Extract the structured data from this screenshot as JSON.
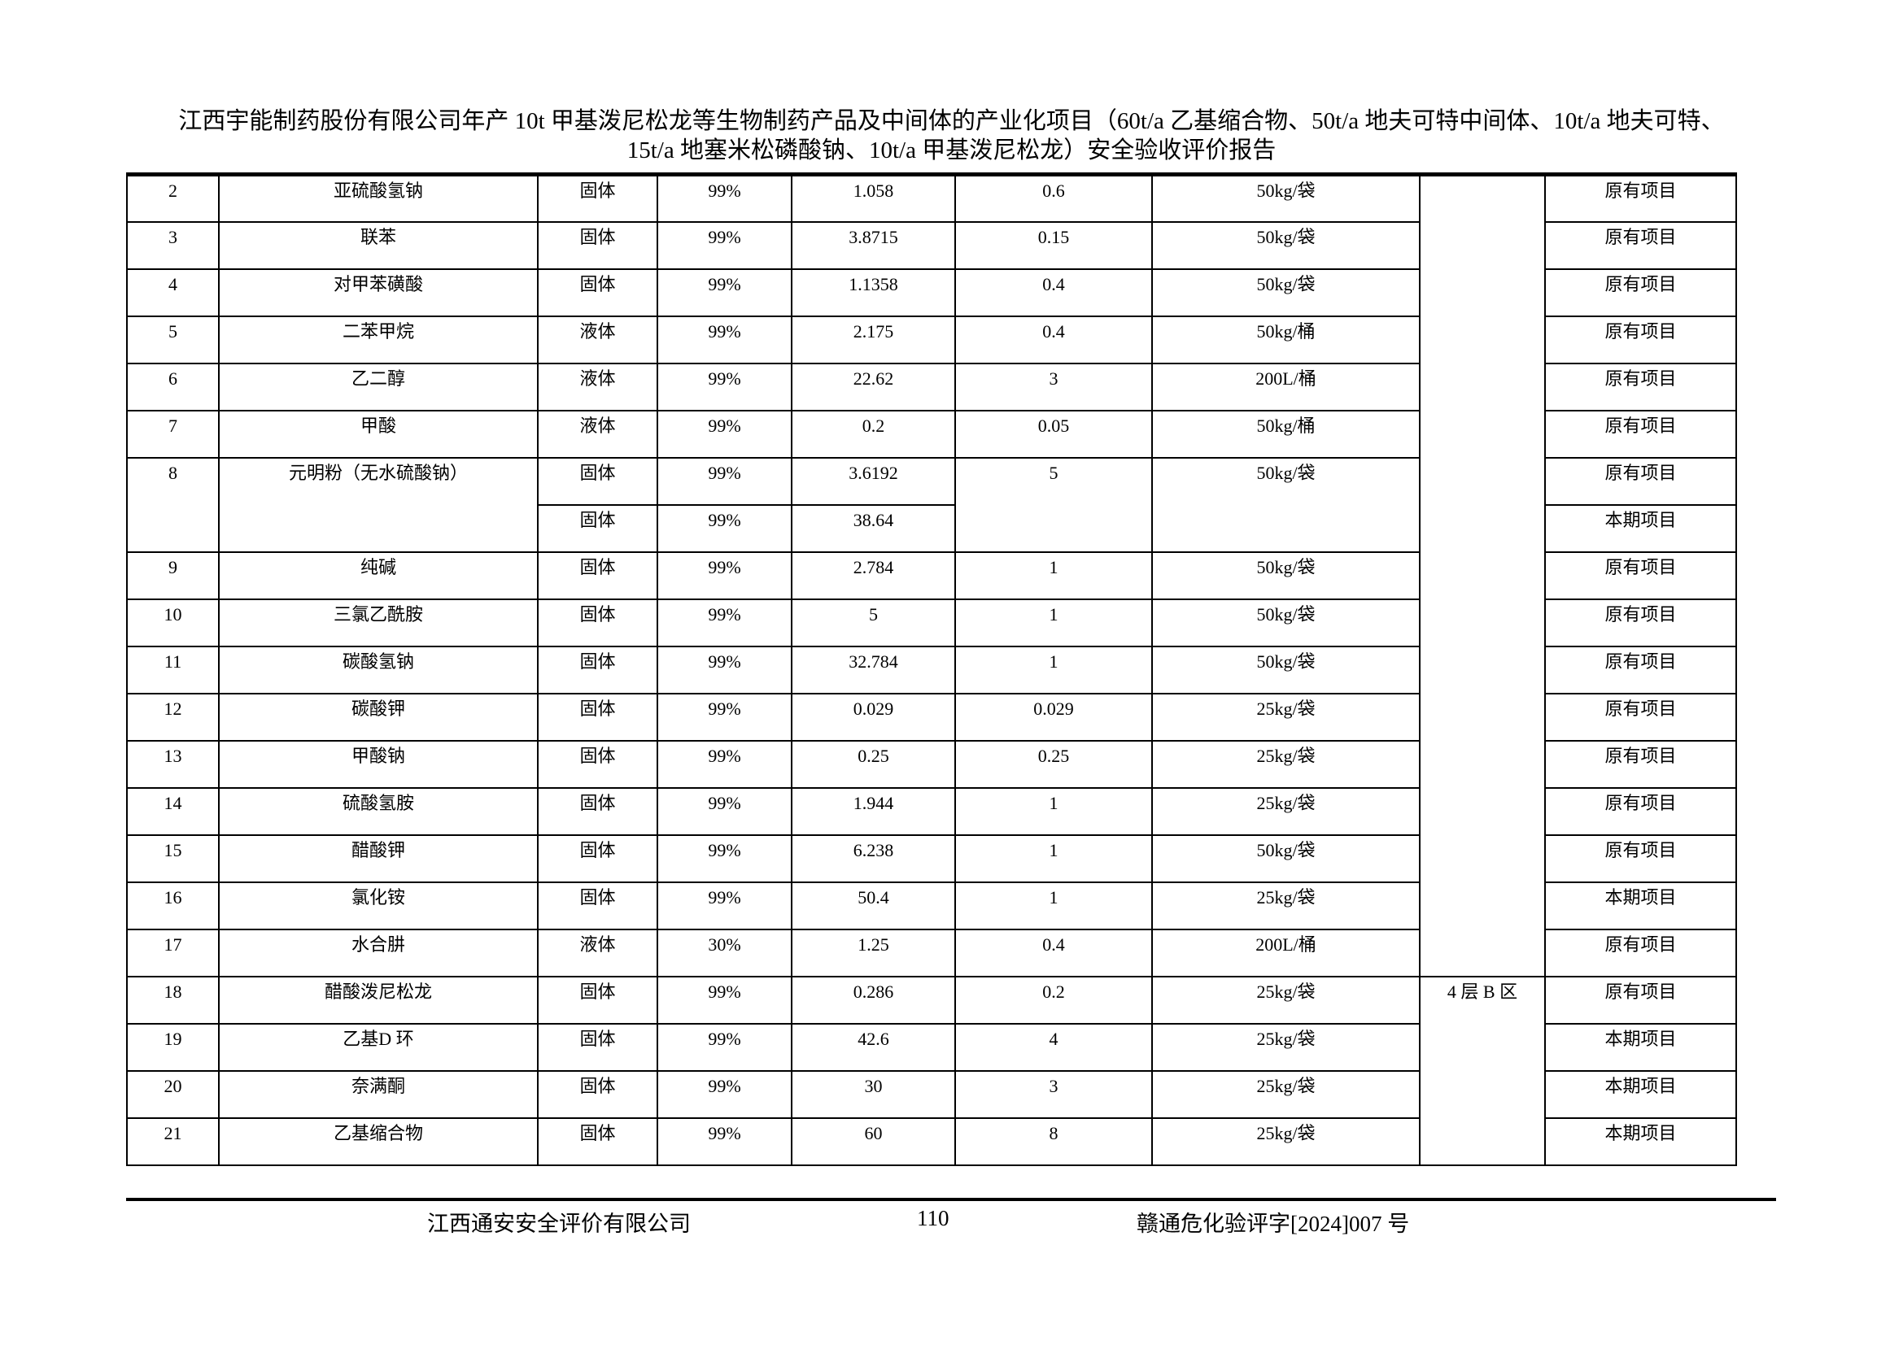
{
  "header": {
    "title_line1": "江西宇能制药股份有限公司年产 10t 甲基泼尼松龙等生物制药产品及中间体的产业化项目（60t/a 乙基缩合物、50t/a 地夫可特中间体、10t/a 地夫可特、",
    "title_line2": "15t/a 地塞米松磷酸钠、10t/a 甲基泼尼松龙）安全验收评价报告"
  },
  "table": {
    "location_groups": [
      {
        "label": "",
        "from": "2",
        "to": "17"
      },
      {
        "label": "4 层 B 区",
        "from": "18",
        "to": "21"
      }
    ],
    "rows": [
      {
        "no": "2",
        "name": "亚硫酸氢钠",
        "state": "固体",
        "purity": "99%",
        "storage": "1.058",
        "daily": "0.6",
        "package": "50kg/袋",
        "project": "原有项目"
      },
      {
        "no": "3",
        "name": "联苯",
        "state": "固体",
        "purity": "99%",
        "storage": "3.8715",
        "daily": "0.15",
        "package": "50kg/袋",
        "project": "原有项目"
      },
      {
        "no": "4",
        "name": "对甲苯磺酸",
        "state": "固体",
        "purity": "99%",
        "storage": "1.1358",
        "daily": "0.4",
        "package": "50kg/袋",
        "project": "原有项目"
      },
      {
        "no": "5",
        "name": "二苯甲烷",
        "state": "液体",
        "purity": "99%",
        "storage": "2.175",
        "daily": "0.4",
        "package": "50kg/桶",
        "project": "原有项目"
      },
      {
        "no": "6",
        "name": "乙二醇",
        "state": "液体",
        "purity": "99%",
        "storage": "22.62",
        "daily": "3",
        "package": "200L/桶",
        "project": "原有项目"
      },
      {
        "no": "7",
        "name": "甲酸",
        "state": "液体",
        "purity": "99%",
        "storage": "0.2",
        "daily": "0.05",
        "package": "50kg/桶",
        "project": "原有项目"
      },
      {
        "no": "8",
        "name": "元明粉（无水硫酸钠）",
        "daily": "5",
        "package": "50kg/袋",
        "sub": [
          {
            "state": "固体",
            "purity": "99%",
            "storage": "3.6192",
            "project": "原有项目"
          },
          {
            "state": "固体",
            "purity": "99%",
            "storage": "38.64",
            "project": "本期项目"
          }
        ]
      },
      {
        "no": "9",
        "name": "纯碱",
        "state": "固体",
        "purity": "99%",
        "storage": "2.784",
        "daily": "1",
        "package": "50kg/袋",
        "project": "原有项目"
      },
      {
        "no": "10",
        "name": "三氯乙酰胺",
        "state": "固体",
        "purity": "99%",
        "storage": "5",
        "daily": "1",
        "package": "50kg/袋",
        "project": "原有项目"
      },
      {
        "no": "11",
        "name": "碳酸氢钠",
        "state": "固体",
        "purity": "99%",
        "storage": "32.784",
        "daily": "1",
        "package": "50kg/袋",
        "project": "原有项目"
      },
      {
        "no": "12",
        "name": "碳酸钾",
        "state": "固体",
        "purity": "99%",
        "storage": "0.029",
        "daily": "0.029",
        "package": "25kg/袋",
        "project": "原有项目"
      },
      {
        "no": "13",
        "name": "甲酸钠",
        "state": "固体",
        "purity": "99%",
        "storage": "0.25",
        "daily": "0.25",
        "package": "25kg/袋",
        "project": "原有项目"
      },
      {
        "no": "14",
        "name": "硫酸氢胺",
        "state": "固体",
        "purity": "99%",
        "storage": "1.944",
        "daily": "1",
        "package": "25kg/袋",
        "project": "原有项目"
      },
      {
        "no": "15",
        "name": "醋酸钾",
        "state": "固体",
        "purity": "99%",
        "storage": "6.238",
        "daily": "1",
        "package": "50kg/袋",
        "project": "原有项目"
      },
      {
        "no": "16",
        "name": "氯化铵",
        "state": "固体",
        "purity": "99%",
        "storage": "50.4",
        "daily": "1",
        "package": "25kg/袋",
        "project": "本期项目"
      },
      {
        "no": "17",
        "name": "水合肼",
        "state": "液体",
        "purity": "30%",
        "storage": "1.25",
        "daily": "0.4",
        "package": "200L/桶",
        "project": "原有项目"
      },
      {
        "no": "18",
        "name": "醋酸泼尼松龙",
        "state": "固体",
        "purity": "99%",
        "storage": "0.286",
        "daily": "0.2",
        "package": "25kg/袋",
        "project": "原有项目"
      },
      {
        "no": "19",
        "name": "乙基D 环",
        "state": "固体",
        "purity": "99%",
        "storage": "42.6",
        "daily": "4",
        "package": "25kg/袋",
        "project": "本期项目"
      },
      {
        "no": "20",
        "name": "奈满酮",
        "state": "固体",
        "purity": "99%",
        "storage": "30",
        "daily": "3",
        "package": "25kg/袋",
        "project": "本期项目"
      },
      {
        "no": "21",
        "name": "乙基缩合物",
        "state": "固体",
        "purity": "99%",
        "storage": "60",
        "daily": "8",
        "package": "25kg/袋",
        "project": "本期项目"
      }
    ]
  },
  "footer": {
    "company": "江西通安安全评价有限公司",
    "page_number": "110",
    "doc_number": "赣通危化验评字[2024]007 号"
  }
}
